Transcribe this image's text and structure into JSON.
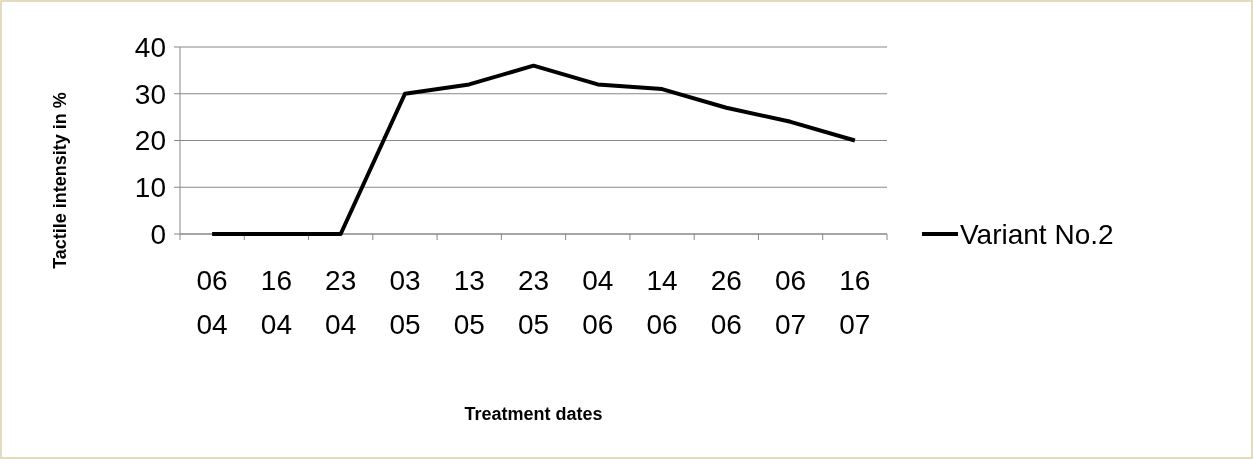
{
  "chart_data": {
    "type": "line",
    "xlabel": "Treatment dates",
    "ylabel": "Tactile intensity in %",
    "categories": [
      "06 04",
      "16 04",
      "23 04",
      "03 05",
      "13 05",
      "23 05",
      "04 06",
      "14 06",
      "26 06",
      "06 07",
      "16 07"
    ],
    "series": [
      {
        "name": "Variant No.2",
        "color": "#000000",
        "values": [
          0,
          0,
          0,
          30,
          32,
          36,
          32,
          31,
          27,
          24,
          20
        ]
      }
    ],
    "ylim": [
      0,
      40
    ],
    "yticks": [
      0,
      10,
      20,
      30,
      40
    ],
    "grid": "y",
    "legend": "right",
    "marker": "none",
    "line_style": "solid"
  }
}
